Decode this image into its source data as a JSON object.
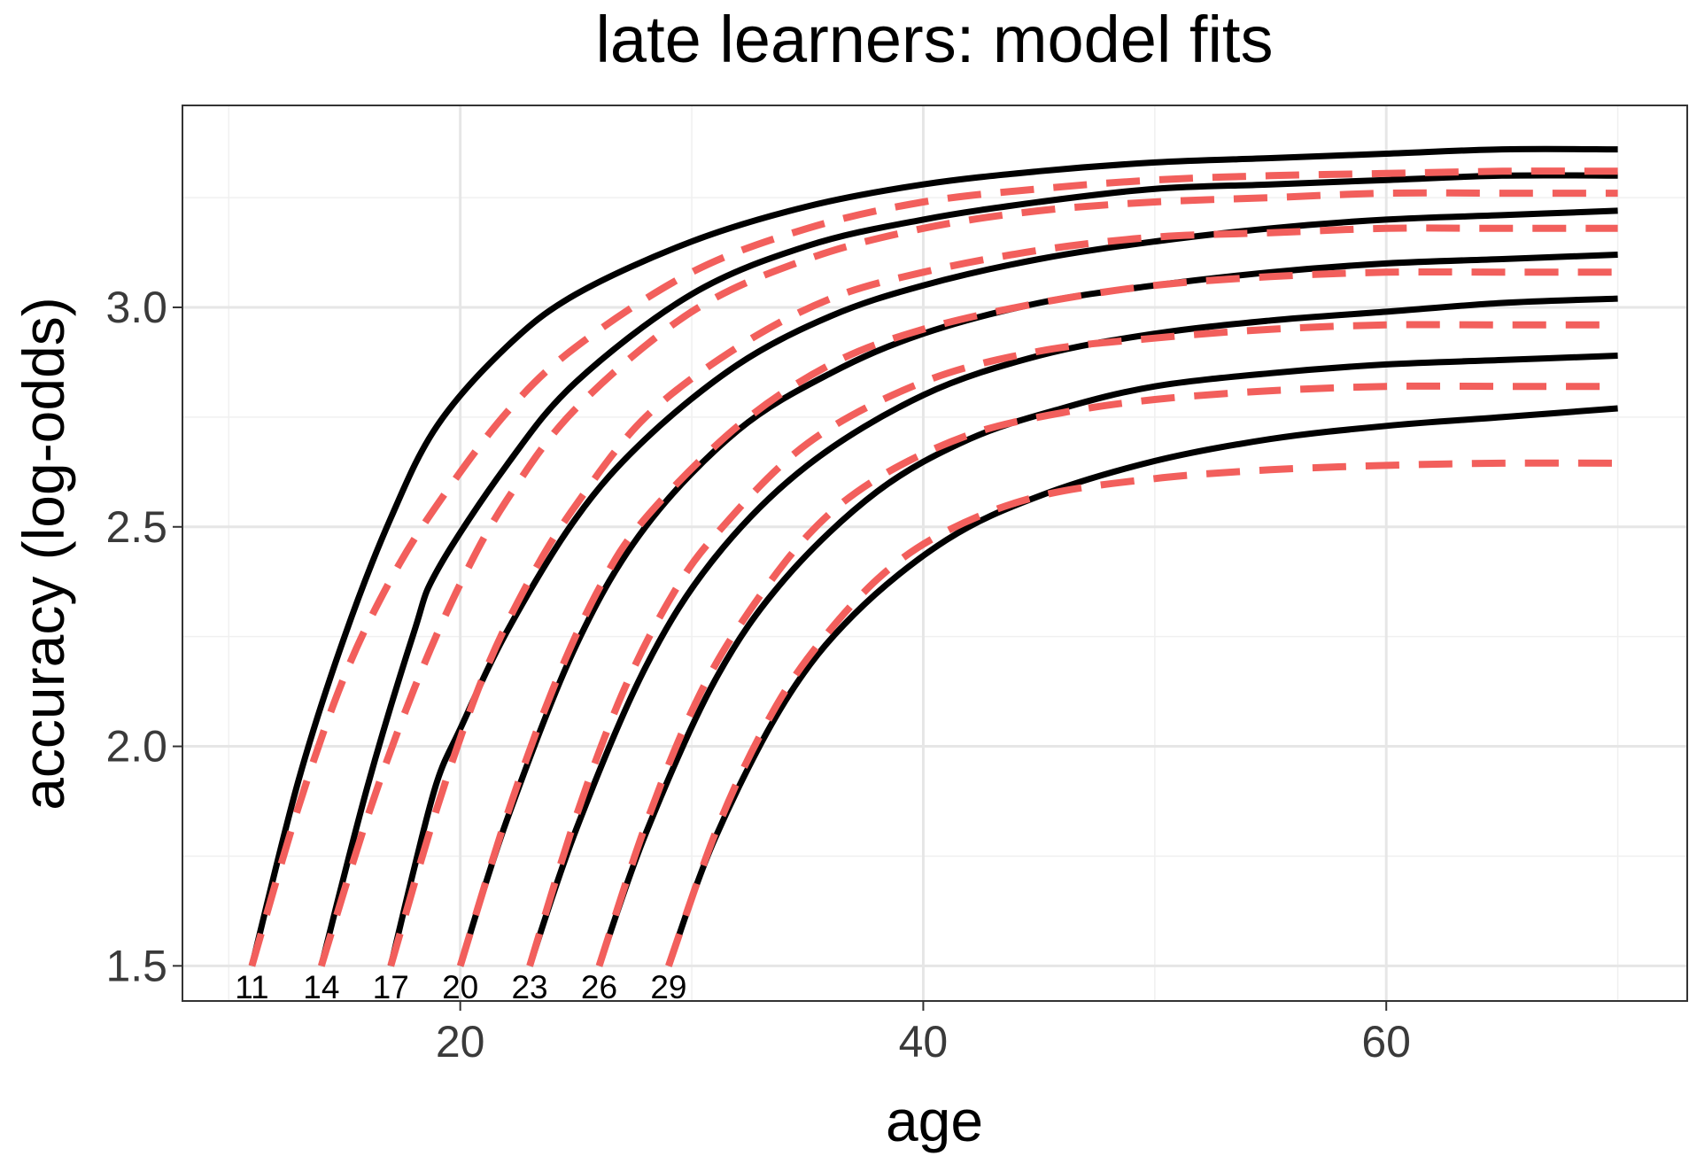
{
  "chart_data": {
    "type": "line",
    "title": "late learners: model fits",
    "xlabel": "age",
    "ylabel": "accuracy (log-odds)",
    "xlim": [
      8,
      73
    ],
    "ylim": [
      1.42,
      3.46
    ],
    "x_ticks": [
      20,
      40,
      60
    ],
    "x_tick_labels": [
      "20",
      "40",
      "60"
    ],
    "x_minor_ticks": [
      10,
      30,
      50,
      70
    ],
    "y_ticks": [
      1.5,
      2.0,
      2.5,
      3.0
    ],
    "y_tick_labels": [
      "1.5",
      "2.0",
      "2.5",
      "3.0"
    ],
    "y_minor_ticks": [
      1.75,
      2.25,
      2.75,
      3.25
    ],
    "grid": true,
    "legend": "none",
    "colors": {
      "solid": "#000000",
      "dashed": "#f25f5c",
      "grid": "#e6e6e6",
      "border": "#333333"
    },
    "start_ages": [
      "11",
      "14",
      "17",
      "20",
      "23",
      "26",
      "29"
    ],
    "series": [
      {
        "style": "solid",
        "start_label": "11",
        "x": [
          11,
          13,
          15,
          17,
          19,
          22,
          25,
          30,
          35,
          40,
          45,
          50,
          55,
          60,
          65,
          70
        ],
        "y": [
          1.5,
          1.92,
          2.25,
          2.52,
          2.73,
          2.91,
          3.03,
          3.15,
          3.23,
          3.28,
          3.31,
          3.33,
          3.34,
          3.35,
          3.36,
          3.36
        ]
      },
      {
        "style": "dashed",
        "x": [
          11,
          13,
          15,
          17,
          19,
          22,
          25,
          30,
          35,
          40,
          45,
          50,
          55,
          60,
          65,
          70
        ],
        "y": [
          1.5,
          1.86,
          2.16,
          2.38,
          2.55,
          2.76,
          2.91,
          3.08,
          3.18,
          3.24,
          3.27,
          3.29,
          3.3,
          3.305,
          3.31,
          3.31
        ]
      },
      {
        "style": "solid",
        "start_label": "14",
        "x": [
          14,
          16,
          18,
          19,
          22,
          25,
          30,
          35,
          40,
          45,
          50,
          55,
          60,
          65,
          70
        ],
        "y": [
          1.5,
          1.91,
          2.26,
          2.4,
          2.64,
          2.83,
          3.03,
          3.14,
          3.2,
          3.24,
          3.27,
          3.28,
          3.29,
          3.3,
          3.3
        ]
      },
      {
        "style": "dashed",
        "x": [
          14,
          16,
          18,
          20,
          22,
          25,
          30,
          35,
          40,
          45,
          50,
          55,
          60,
          65,
          70
        ],
        "y": [
          1.5,
          1.84,
          2.13,
          2.37,
          2.56,
          2.77,
          2.99,
          3.11,
          3.18,
          3.22,
          3.24,
          3.25,
          3.26,
          3.26,
          3.26
        ]
      },
      {
        "style": "solid",
        "start_label": "17",
        "x": [
          17,
          18,
          19,
          20,
          22,
          25,
          28,
          32,
          36,
          40,
          45,
          50,
          55,
          60,
          65,
          70
        ],
        "y": [
          1.5,
          1.72,
          1.92,
          2.04,
          2.26,
          2.52,
          2.7,
          2.87,
          2.98,
          3.05,
          3.11,
          3.15,
          3.18,
          3.2,
          3.21,
          3.22
        ]
      },
      {
        "style": "dashed",
        "x": [
          17,
          19,
          21,
          23,
          25,
          28,
          32,
          36,
          40,
          45,
          50,
          55,
          60,
          65,
          70
        ],
        "y": [
          1.5,
          1.86,
          2.16,
          2.38,
          2.55,
          2.75,
          2.91,
          3.02,
          3.08,
          3.13,
          3.16,
          3.17,
          3.18,
          3.18,
          3.18
        ]
      },
      {
        "style": "solid",
        "start_label": "20",
        "x": [
          20,
          22,
          25,
          28,
          32,
          36,
          40,
          45,
          50,
          55,
          60,
          65,
          70
        ],
        "y": [
          1.5,
          1.83,
          2.23,
          2.5,
          2.72,
          2.85,
          2.94,
          3.01,
          3.05,
          3.08,
          3.1,
          3.11,
          3.12
        ]
      },
      {
        "style": "dashed",
        "x": [
          20,
          22,
          24,
          26,
          28,
          32,
          36,
          40,
          45,
          50,
          55,
          60,
          65,
          70
        ],
        "y": [
          1.5,
          1.84,
          2.13,
          2.36,
          2.52,
          2.73,
          2.87,
          2.95,
          3.01,
          3.05,
          3.07,
          3.08,
          3.08,
          3.08
        ]
      },
      {
        "style": "solid",
        "start_label": "23",
        "x": [
          23,
          25,
          28,
          31,
          35,
          40,
          45,
          50,
          55,
          60,
          65,
          70
        ],
        "y": [
          1.5,
          1.81,
          2.18,
          2.43,
          2.64,
          2.8,
          2.89,
          2.94,
          2.97,
          2.99,
          3.01,
          3.02
        ]
      },
      {
        "style": "dashed",
        "x": [
          23,
          25,
          27,
          29,
          31,
          35,
          40,
          45,
          50,
          55,
          60,
          65,
          70
        ],
        "y": [
          1.5,
          1.84,
          2.12,
          2.33,
          2.48,
          2.69,
          2.83,
          2.9,
          2.93,
          2.95,
          2.96,
          2.96,
          2.96
        ]
      },
      {
        "style": "solid",
        "start_label": "26",
        "x": [
          26,
          28,
          31,
          34,
          38,
          42,
          46,
          50,
          55,
          60,
          65,
          70
        ],
        "y": [
          1.5,
          1.8,
          2.15,
          2.38,
          2.58,
          2.7,
          2.77,
          2.82,
          2.85,
          2.87,
          2.88,
          2.89
        ]
      },
      {
        "style": "dashed",
        "x": [
          26,
          28,
          30,
          32,
          35,
          38,
          42,
          46,
          50,
          55,
          60,
          65,
          70
        ],
        "y": [
          1.5,
          1.82,
          2.08,
          2.27,
          2.48,
          2.61,
          2.71,
          2.76,
          2.79,
          2.81,
          2.82,
          2.82,
          2.82
        ]
      },
      {
        "style": "solid",
        "start_label": "29",
        "x": [
          29,
          31,
          34,
          37,
          41,
          45,
          50,
          55,
          60,
          65,
          70
        ],
        "y": [
          1.5,
          1.79,
          2.1,
          2.3,
          2.47,
          2.57,
          2.65,
          2.7,
          2.73,
          2.75,
          2.77
        ]
      },
      {
        "style": "dashed",
        "x": [
          29,
          31,
          33,
          35,
          38,
          41,
          45,
          50,
          55,
          60,
          65,
          70
        ],
        "y": [
          1.5,
          1.8,
          2.03,
          2.2,
          2.38,
          2.49,
          2.57,
          2.61,
          2.63,
          2.64,
          2.645,
          2.645
        ]
      }
    ]
  }
}
